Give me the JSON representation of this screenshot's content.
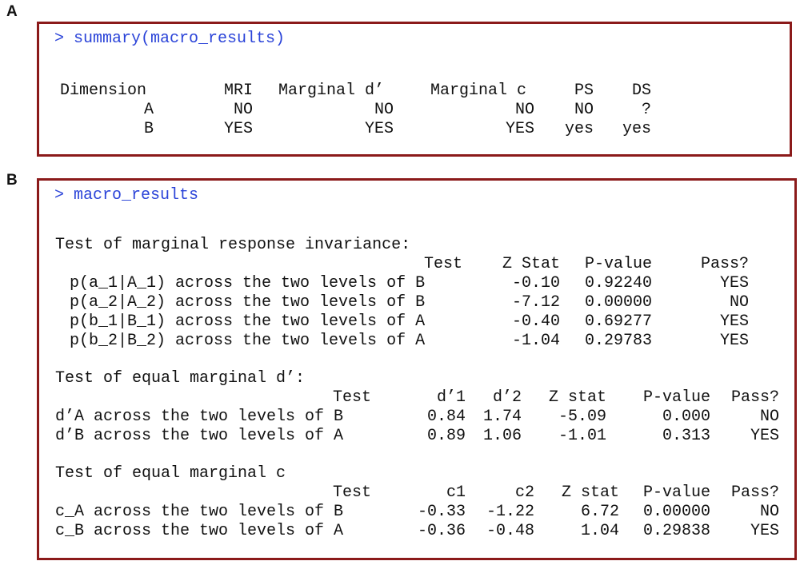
{
  "panels": {
    "a": {
      "label": "A",
      "command": "> summary(macro_results)",
      "headers": [
        "Dimension",
        "MRI",
        "Marginal d’",
        "Marginal c",
        "PS",
        "DS"
      ],
      "rows": [
        [
          "A",
          "NO",
          "NO",
          "NO",
          "NO",
          "?"
        ],
        [
          "B",
          "YES",
          "YES",
          "YES",
          "yes",
          "yes"
        ]
      ]
    },
    "b": {
      "label": "B",
      "command": "> macro_results",
      "mri": {
        "title": "Test of marginal response invariance:",
        "headers": [
          "Test",
          "Z Stat",
          "P-value",
          "Pass?"
        ],
        "rows": [
          [
            "p(a_1|A_1) across the two levels of B",
            "-0.10",
            "0.92240",
            "YES"
          ],
          [
            "p(a_2|A_2) across the two levels of B",
            "-7.12",
            "0.00000",
            "NO"
          ],
          [
            "p(b_1|B_1) across the two levels of A",
            "-0.40",
            "0.69277",
            "YES"
          ],
          [
            "p(b_2|B_2) across the two levels of A",
            "-1.04",
            "0.29783",
            "YES"
          ]
        ]
      },
      "dprime": {
        "title": "Test of equal marginal d’:",
        "headers": [
          "Test",
          "d’1",
          "d’2",
          "Z stat",
          "P-value",
          "Pass?"
        ],
        "rows": [
          [
            "d’A across the two levels of B",
            "0.84",
            "1.74",
            "-5.09",
            "0.000",
            "NO"
          ],
          [
            "d’B across the two levels of A",
            "0.89",
            "1.06",
            "-1.01",
            "0.313",
            "YES"
          ]
        ]
      },
      "c": {
        "title": "Test of equal marginal c",
        "headers": [
          "Test",
          "c1",
          "c2",
          "Z stat",
          "P-value",
          "Pass?"
        ],
        "rows": [
          [
            "c_A across the two levels of B",
            "-0.33",
            "-1.22",
            "6.72",
            "0.00000",
            "NO"
          ],
          [
            "c_B across the two levels of A",
            "-0.36",
            "-0.48",
            "1.04",
            "0.29838",
            "YES"
          ]
        ]
      }
    }
  },
  "colors": {
    "border": "#8b1a1a",
    "command": "#2a43d8",
    "text": "#111111"
  }
}
